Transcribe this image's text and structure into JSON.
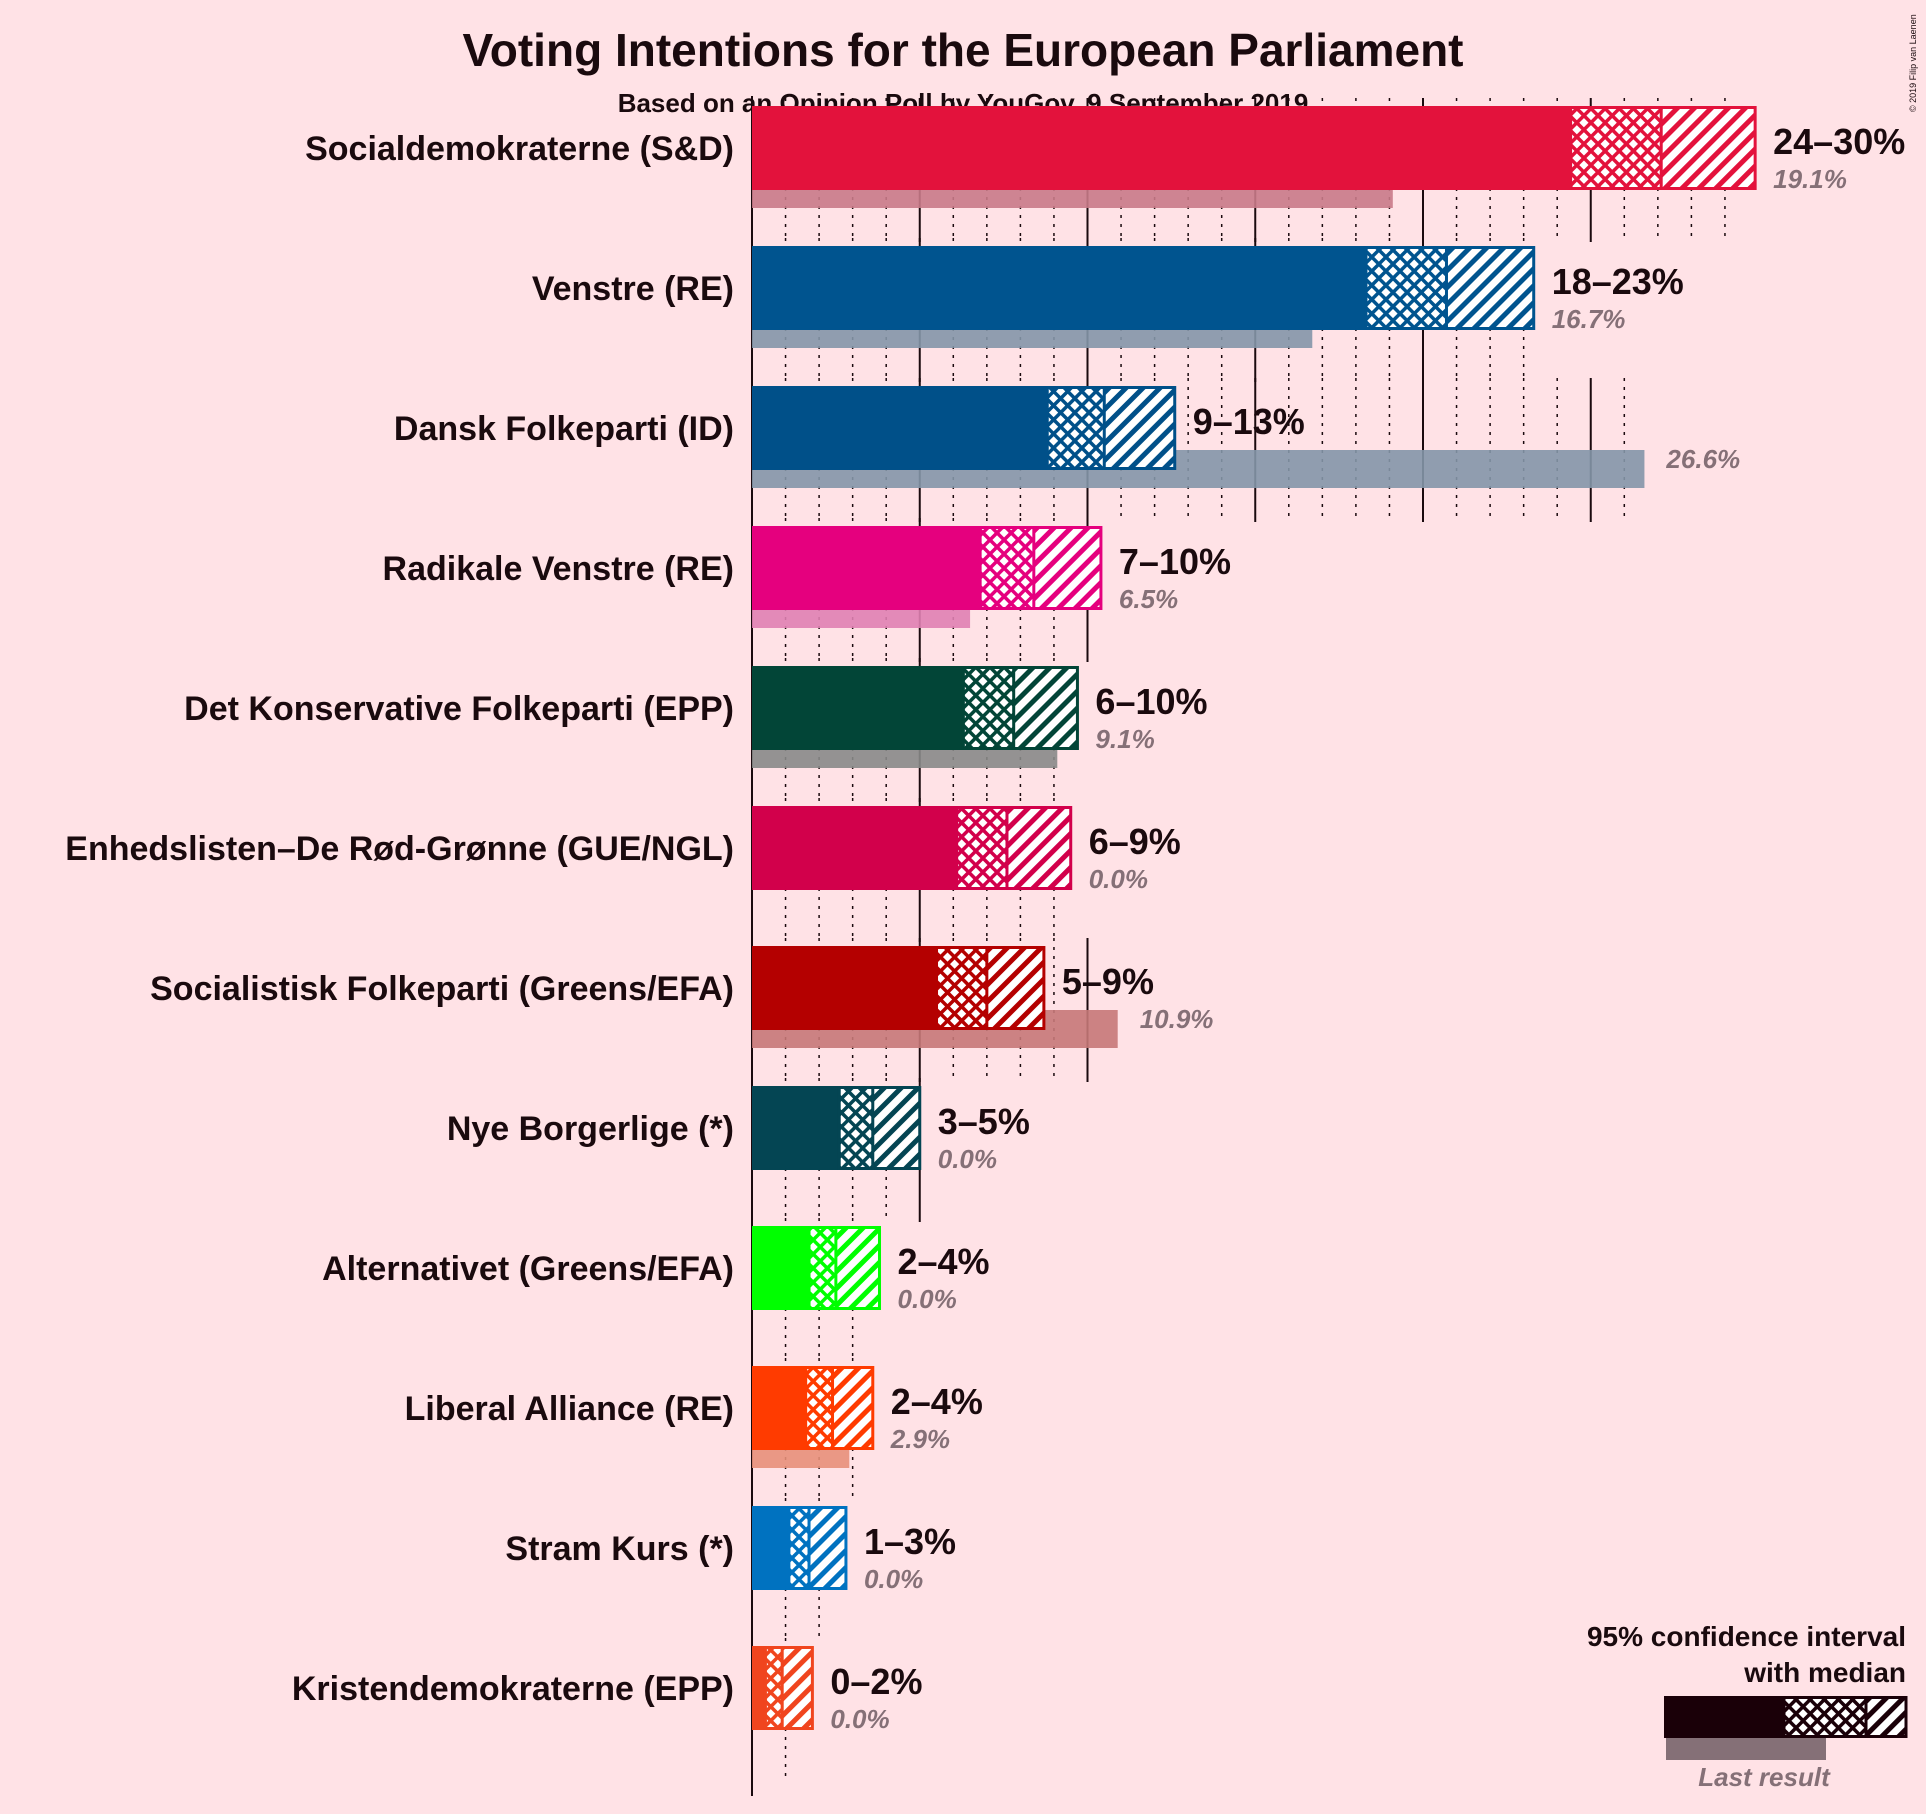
{
  "header": {
    "title": "Voting Intentions for the European Parliament",
    "subtitle": "Based on an Opinion Poll by YouGov, 9 September 2019",
    "copyright": "© 2019 Filip van Laenen"
  },
  "legend": {
    "line1": "95% confidence interval",
    "line2": "with median",
    "last_result": "Last result"
  },
  "chart_data": {
    "type": "bar",
    "orientation": "horizontal",
    "title": "Voting Intentions for the European Parliament",
    "subtitle": "Based on an Opinion Poll by YouGov, 9 September 2019",
    "xlim": [
      0,
      30
    ],
    "grid": "vertical lines every 1%, solid every 5%",
    "parties": [
      {
        "name": "Socialdemokraterne (S&D)",
        "color": "#e3123c",
        "last_color": "#c97a88",
        "ci_low": 24.4,
        "median": 27.1,
        "ci_high": 29.9,
        "range_label": "24–30%",
        "last": 19.1,
        "last_label": "19.1%"
      },
      {
        "name": "Venstre (RE)",
        "color": "#00548f",
        "last_color": "#8496a8",
        "ci_low": 18.3,
        "median": 20.7,
        "ci_high": 23.3,
        "range_label": "18–23%",
        "last": 16.7,
        "last_label": "16.7%"
      },
      {
        "name": "Dansk Folkeparti (ID)",
        "color": "#005089",
        "last_color": "#8496a8",
        "ci_low": 8.8,
        "median": 10.5,
        "ci_high": 12.6,
        "range_label": "9–13%",
        "last": 26.6,
        "last_label": "26.6%"
      },
      {
        "name": "Radikale Venstre (RE)",
        "color": "#e5007e",
        "last_color": "#e081b2",
        "ci_low": 6.8,
        "median": 8.4,
        "ci_high": 10.4,
        "range_label": "7–10%",
        "last": 6.5,
        "last_label": "6.5%"
      },
      {
        "name": "Det Konservative Folkeparti (EPP)",
        "color": "#024537",
        "last_color": "#888a88",
        "ci_low": 6.3,
        "median": 7.8,
        "ci_high": 9.7,
        "range_label": "6–10%",
        "last": 9.1,
        "last_label": "9.1%"
      },
      {
        "name": "Enhedslisten–De Rød-Grønne (GUE/NGL)",
        "color": "#d2004b",
        "last_color": "#d27e98",
        "ci_low": 6.1,
        "median": 7.6,
        "ci_high": 9.5,
        "range_label": "6–9%",
        "last": 0,
        "last_label": "0.0%"
      },
      {
        "name": "Socialistisk Folkeparti (Greens/EFA)",
        "color": "#b40000",
        "last_color": "#c67878",
        "ci_low": 5.5,
        "median": 7.0,
        "ci_high": 8.7,
        "range_label": "5–9%",
        "last": 10.9,
        "last_label": "10.9%"
      },
      {
        "name": "Nye Borgerlige (*)",
        "color": "#044553",
        "last_color": "#8a9ca0",
        "ci_low": 2.6,
        "median": 3.6,
        "ci_high": 5.0,
        "range_label": "3–5%",
        "last": 0,
        "last_label": "0.0%"
      },
      {
        "name": "Alternativet (Greens/EFA)",
        "color": "#00ff00",
        "last_color": "#8be38b",
        "ci_low": 1.7,
        "median": 2.5,
        "ci_high": 3.8,
        "range_label": "2–4%",
        "last": 0,
        "last_label": "0.0%"
      },
      {
        "name": "Liberal Alliance (RE)",
        "color": "#ff3b00",
        "last_color": "#e8907a",
        "ci_low": 1.6,
        "median": 2.4,
        "ci_high": 3.6,
        "range_label": "2–4%",
        "last": 2.9,
        "last_label": "2.9%"
      },
      {
        "name": "Stram Kurs (*)",
        "color": "#0072c0",
        "last_color": "#86acd0",
        "ci_low": 1.1,
        "median": 1.7,
        "ci_high": 2.8,
        "range_label": "1–3%",
        "last": 0,
        "last_label": "0.0%"
      },
      {
        "name": "Kristendemokraterne (EPP)",
        "color": "#f0451e",
        "last_color": "#e8907a",
        "ci_low": 0.4,
        "median": 0.9,
        "ci_high": 1.8,
        "range_label": "0–2%",
        "last": 0,
        "last_label": "0.0%"
      }
    ]
  }
}
